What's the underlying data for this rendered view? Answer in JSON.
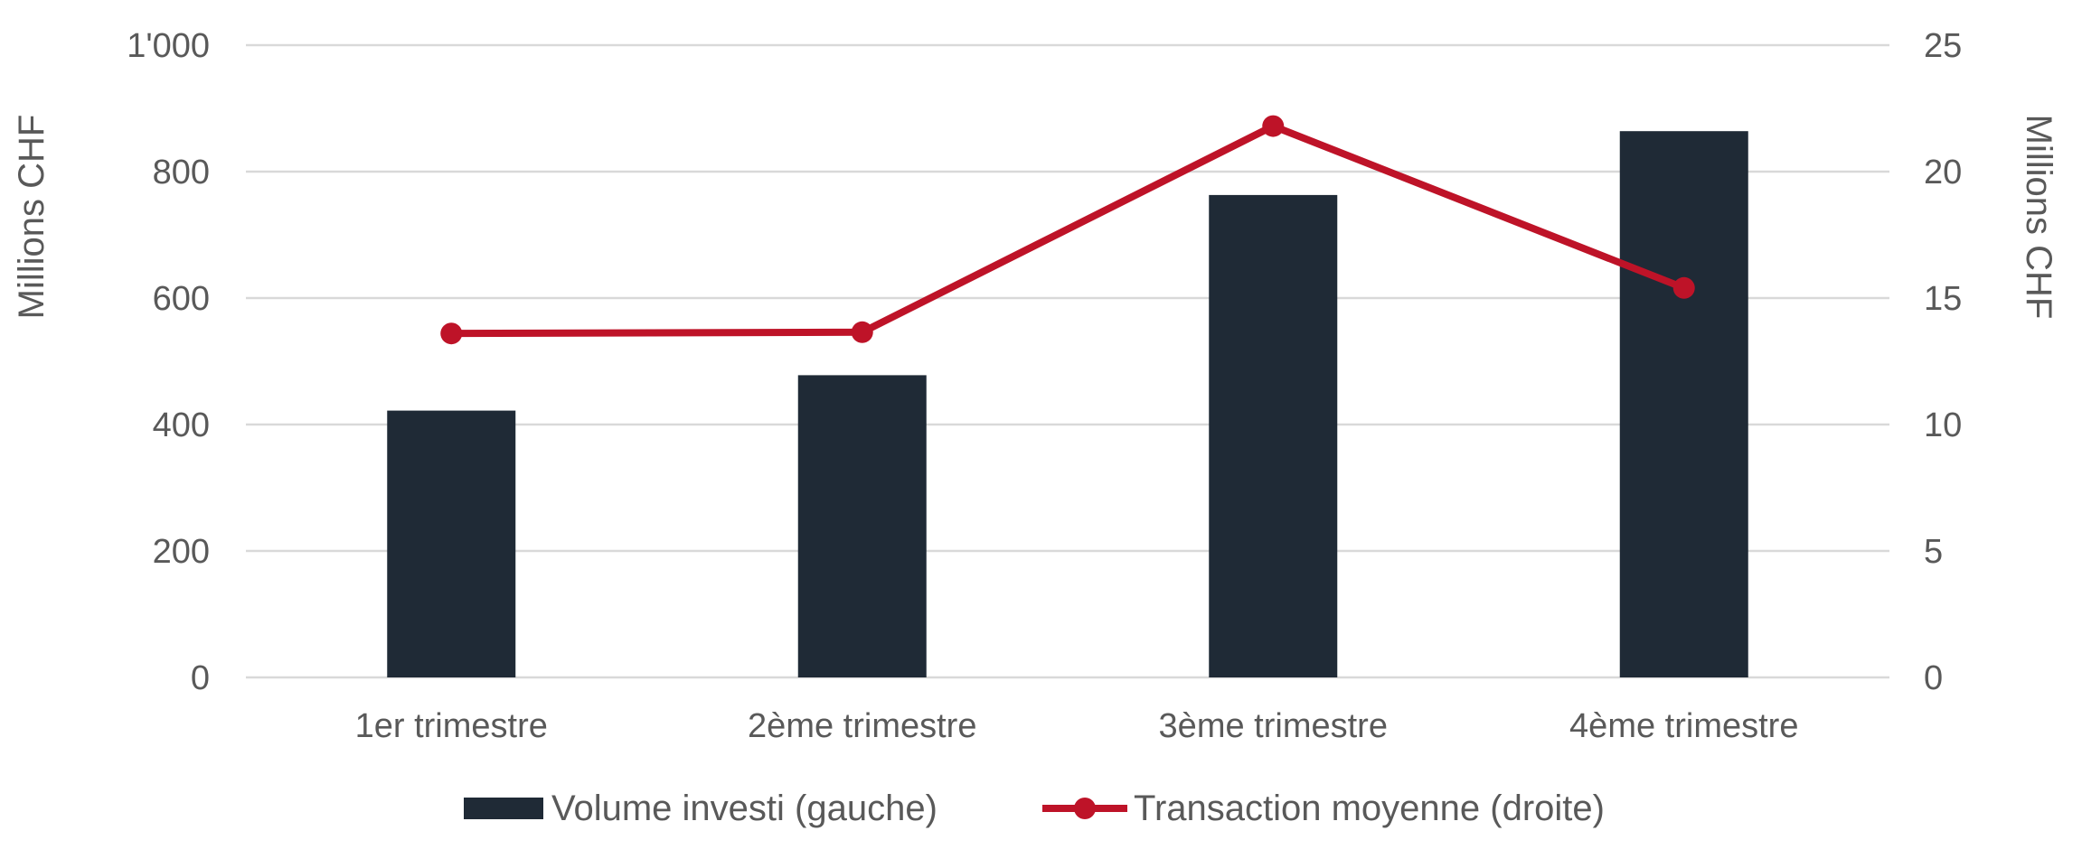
{
  "chart_data": {
    "type": "bar",
    "categories": [
      "1er trimestre",
      "2ème trimestre",
      "3ème trimestre",
      "4ème trimestre"
    ],
    "series": [
      {
        "name": "Volume investi (gauche)",
        "type": "bar",
        "axis": "left",
        "color": "#1f2a36",
        "values": [
          422,
          478,
          763,
          864
        ]
      },
      {
        "name": "Transaction moyenne (droite)",
        "type": "line",
        "axis": "right",
        "color": "#be1328",
        "values": [
          13.6,
          13.65,
          21.8,
          15.4
        ]
      }
    ],
    "ylabel_left": "Millions CHF",
    "ylabel_right": "Millions CHF",
    "ylim_left": [
      0,
      1000
    ],
    "ylim_right": [
      0,
      25
    ],
    "yticks_left": [
      "0",
      "200",
      "400",
      "600",
      "800",
      "1'000"
    ],
    "yticks_right": [
      "0",
      "5",
      "10",
      "15",
      "20",
      "25"
    ],
    "grid": true,
    "legend_position": "bottom"
  }
}
